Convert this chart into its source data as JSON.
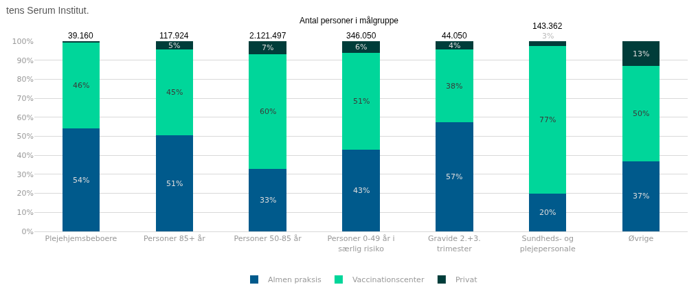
{
  "chart_data": {
    "type": "bar",
    "title": "Antal personer i målgruppe",
    "stacked": true,
    "categories": [
      "Plejehjemsbeboere",
      "Personer 85+ år",
      "Personer 50-85 år",
      "Personer 0-49 år i særlig risiko",
      "Gravide 2.+3. trimester",
      "Sundheds- og plejepersonale",
      "Øvrige"
    ],
    "series": [
      {
        "name": "Almen praksis",
        "color": "#005a8c",
        "values": [
          54,
          50.5,
          33,
          43,
          57.3,
          20,
          37
        ],
        "value_labels": [
          "54%",
          "51%",
          "33%",
          "43%",
          "57%",
          "20%",
          "37%"
        ]
      },
      {
        "name": "Vaccinationscenter",
        "color": "#00d69a",
        "values": [
          45.6,
          45,
          60,
          51,
          38.2,
          77.3,
          50
        ],
        "value_labels": [
          "46%",
          "45%",
          "60%",
          "51%",
          "38%",
          "77%",
          "50%"
        ]
      },
      {
        "name": "Privat",
        "color": "#003d3a",
        "values": [
          0.4,
          4.5,
          7,
          6,
          4.5,
          2.7,
          13
        ],
        "value_labels": [
          null,
          "5%",
          "7%",
          "6%",
          "4%",
          "3%",
          "13%"
        ]
      }
    ],
    "ylim": [
      0,
      100
    ],
    "yticks": [
      {
        "value": 0,
        "label": "0%"
      },
      {
        "value": 10,
        "label": "10%"
      },
      {
        "value": 20,
        "label": "20%"
      },
      {
        "value": 30,
        "label": "30%"
      },
      {
        "value": 40,
        "label": "40%"
      },
      {
        "value": 50,
        "label": "50%"
      },
      {
        "value": 60,
        "label": "60%"
      },
      {
        "value": 70,
        "label": "70%"
      },
      {
        "value": 80,
        "label": "80%"
      },
      {
        "value": 90,
        "label": "90%"
      },
      {
        "value": 100,
        "label": "100%"
      }
    ],
    "grid": "y",
    "legend": "bottom",
    "annotations": [
      "tens Serum Institut.",
      {
        "text": "39.160",
        "x": "Plejehjemsbeboere",
        "y": 100
      },
      {
        "text": "117.924",
        "x": "Personer 85+ år",
        "y": 100
      },
      {
        "text": "2.121.497",
        "x": "Personer 50-85 år",
        "y": 100
      },
      {
        "text": "346.050",
        "x": "Personer 0-49 år i særlig risiko",
        "y": 100
      },
      {
        "text": "44.050",
        "x": "Gravide 2.+3. trimester",
        "y": 100
      },
      {
        "text": "143.362",
        "x": "Sundheds- og plejepersonale",
        "y": 100
      }
    ]
  }
}
